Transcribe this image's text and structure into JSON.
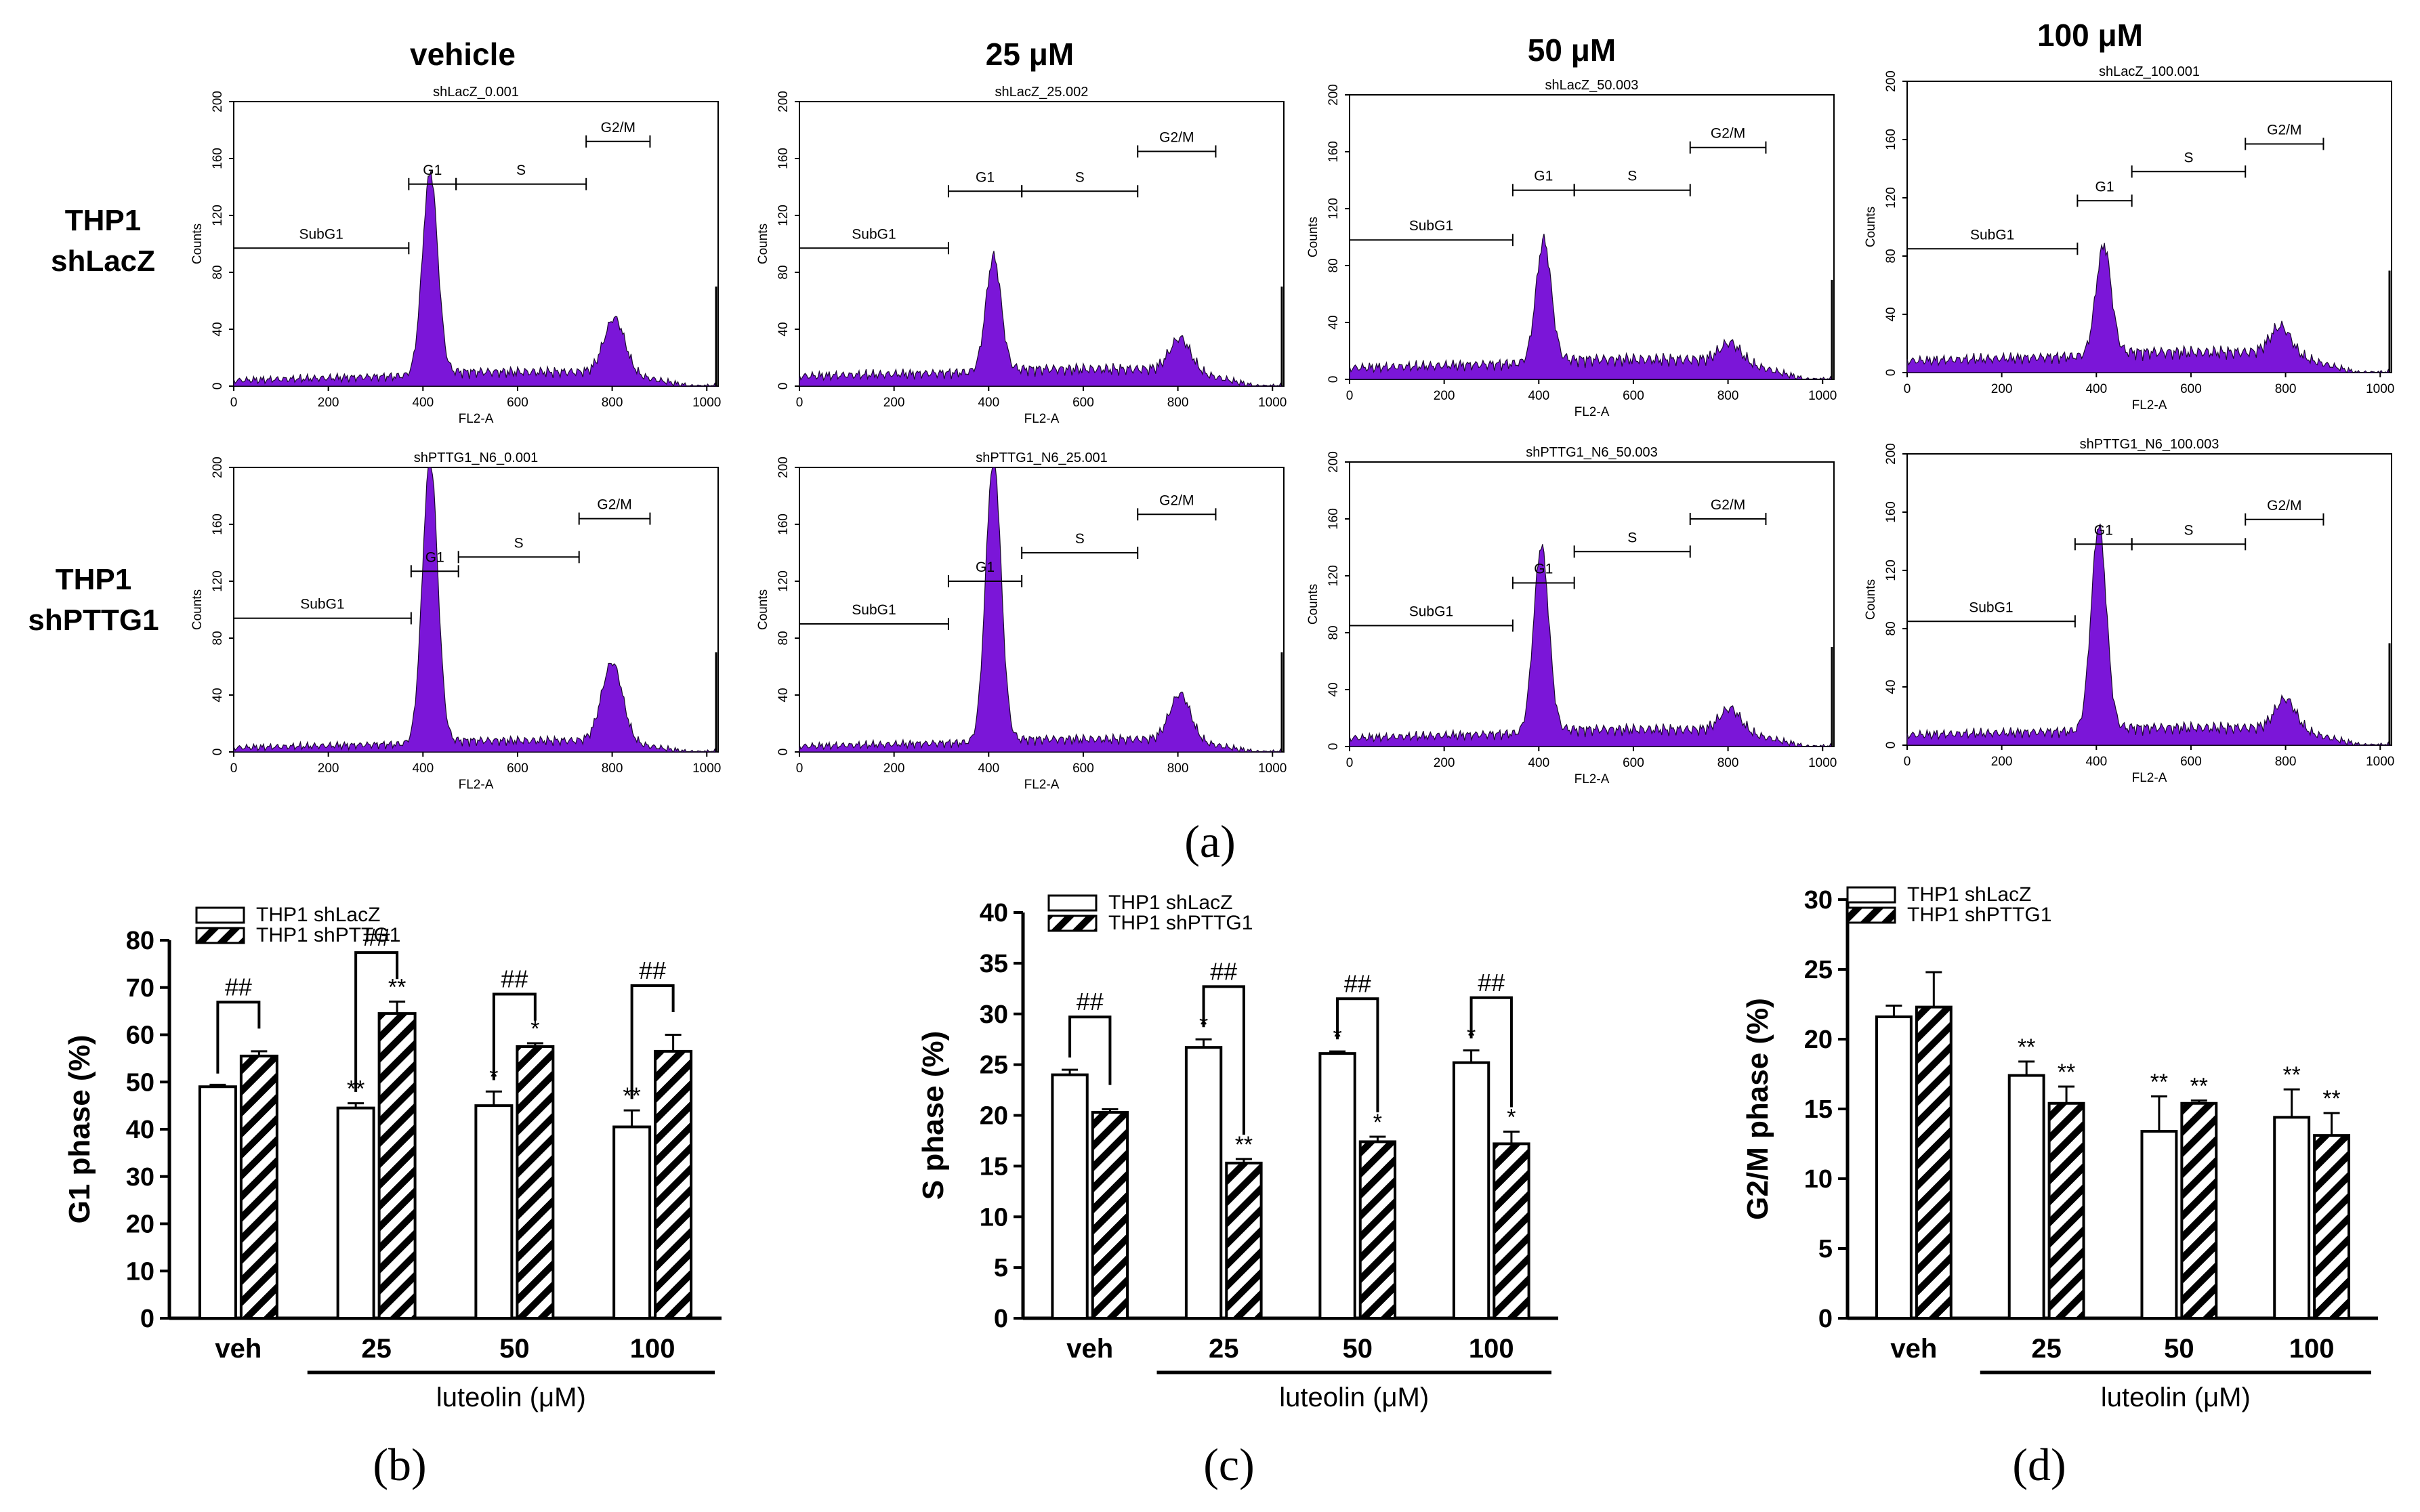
{
  "colors": {
    "histogram_fill": "#7b16d8",
    "histogram_edge": "#1a0a2e",
    "axis": "#000000",
    "bar_open": "#ffffff"
  },
  "panel_labels": {
    "a": "(a)",
    "b": "(b)",
    "c": "(c)",
    "d": "(d)"
  },
  "flow": {
    "columns": [
      "vehicle",
      "25 μM",
      "50 μM",
      "100 μM"
    ],
    "rows": [
      {
        "label_line1": "THP1",
        "label_line2": "shLacZ"
      },
      {
        "label_line1": "THP1",
        "label_line2": "shPTTG1"
      }
    ],
    "xlabel": "FL2-A",
    "ylabel": "Counts",
    "xticks": [
      "0",
      "200",
      "400",
      "600",
      "800",
      "1000"
    ],
    "yticks": [
      "0",
      "40",
      "80",
      "120",
      "160",
      "200"
    ],
    "gate_labels": [
      "SubG1",
      "G1",
      "S",
      "G2/M"
    ]
  },
  "chart_data": [
    {
      "type": "histogram",
      "panel": "a",
      "row": 0,
      "col": 0,
      "title": "shLacZ_0.001",
      "xlim": [
        0,
        1024
      ],
      "ylim": [
        0,
        200
      ],
      "peaks": {
        "g1_pos": 415,
        "g1_height": 142,
        "g2_pos": 805,
        "g2_height": 38,
        "sub_level": 4,
        "s_level": 10
      },
      "gates": {
        "subg1": [
          0,
          370
        ],
        "g1": [
          370,
          470
        ],
        "s": [
          470,
          745
        ],
        "g2m": [
          745,
          880
        ]
      },
      "gate_y": {
        "subg1": 97,
        "g1": 142,
        "s": 142,
        "g2m": 172
      }
    },
    {
      "type": "histogram",
      "panel": "a",
      "row": 0,
      "col": 1,
      "title": "shLacZ_25.002",
      "xlim": [
        0,
        1024
      ],
      "ylim": [
        0,
        200
      ],
      "peaks": {
        "g1_pos": 410,
        "g1_height": 80,
        "g2_pos": 805,
        "g2_height": 22,
        "sub_level": 7,
        "s_level": 12
      },
      "gates": {
        "subg1": [
          0,
          315
        ],
        "g1": [
          315,
          470
        ],
        "s": [
          470,
          715
        ],
        "g2m": [
          715,
          880
        ]
      },
      "gate_y": {
        "subg1": 97,
        "g1": 137,
        "s": 137,
        "g2m": 165
      }
    },
    {
      "type": "histogram",
      "panel": "a",
      "row": 0,
      "col": 2,
      "title": "shLacZ_50.003",
      "xlim": [
        0,
        1024
      ],
      "ylim": [
        0,
        200
      ],
      "peaks": {
        "g1_pos": 410,
        "g1_height": 85,
        "g2_pos": 805,
        "g2_height": 12,
        "sub_level": 8,
        "s_level": 14
      },
      "gates": {
        "subg1": [
          0,
          345
        ],
        "g1": [
          345,
          475
        ],
        "s": [
          475,
          720
        ],
        "g2m": [
          720,
          880
        ]
      },
      "gate_y": {
        "subg1": 98,
        "g1": 133,
        "s": 133,
        "g2m": 163
      }
    },
    {
      "type": "histogram",
      "panel": "a",
      "row": 0,
      "col": 3,
      "title": "shLacZ_100.001",
      "xlim": [
        0,
        1024
      ],
      "ylim": [
        0,
        200
      ],
      "peaks": {
        "g1_pos": 415,
        "g1_height": 75,
        "g2_pos": 790,
        "g2_height": 18,
        "sub_level": 8,
        "s_level": 14
      },
      "gates": {
        "subg1": [
          0,
          360
        ],
        "g1": [
          360,
          475
        ],
        "s": [
          475,
          715
        ],
        "g2m": [
          715,
          880
        ]
      },
      "gate_y": {
        "subg1": 85,
        "g1": 118,
        "s": 138,
        "g2m": 157
      }
    },
    {
      "type": "histogram",
      "panel": "a",
      "row": 1,
      "col": 0,
      "title": "shPTTG1_N6_0.001",
      "xlim": [
        0,
        1024
      ],
      "ylim": [
        0,
        200
      ],
      "peaks": {
        "g1_pos": 415,
        "g1_height": 200,
        "g2_pos": 800,
        "g2_height": 55,
        "sub_level": 3,
        "s_level": 8
      },
      "gates": {
        "subg1": [
          0,
          375
        ],
        "g1": [
          375,
          475
        ],
        "s": [
          475,
          730
        ],
        "g2m": [
          730,
          880
        ]
      },
      "gate_y": {
        "subg1": 94,
        "g1": 127,
        "s": 137,
        "g2m": 164
      }
    },
    {
      "type": "histogram",
      "panel": "a",
      "row": 1,
      "col": 1,
      "title": "shPTTG1_N6_25.001",
      "xlim": [
        0,
        1024
      ],
      "ylim": [
        0,
        200
      ],
      "peaks": {
        "g1_pos": 410,
        "g1_height": 200,
        "g2_pos": 805,
        "g2_height": 32,
        "sub_level": 4,
        "s_level": 9
      },
      "gates": {
        "subg1": [
          0,
          315
        ],
        "g1": [
          315,
          470
        ],
        "s": [
          470,
          715
        ],
        "g2m": [
          715,
          880
        ]
      },
      "gate_y": {
        "subg1": 90,
        "g1": 120,
        "s": 140,
        "g2m": 167
      }
    },
    {
      "type": "histogram",
      "panel": "a",
      "row": 1,
      "col": 2,
      "title": "shPTTG1_N6_50.003",
      "xlim": [
        0,
        1024
      ],
      "ylim": [
        0,
        200
      ],
      "peaks": {
        "g1_pos": 405,
        "g1_height": 130,
        "g2_pos": 805,
        "g2_height": 15,
        "sub_level": 6,
        "s_level": 12
      },
      "gates": {
        "subg1": [
          0,
          345
        ],
        "g1": [
          345,
          475
        ],
        "s": [
          475,
          720
        ],
        "g2m": [
          720,
          880
        ]
      },
      "gate_y": {
        "subg1": 85,
        "g1": 115,
        "s": 137,
        "g2m": 160
      }
    },
    {
      "type": "histogram",
      "panel": "a",
      "row": 1,
      "col": 3,
      "title": "shPTTG1_N6_100.003",
      "xlim": [
        0,
        1024
      ],
      "ylim": [
        0,
        200
      ],
      "peaks": {
        "g1_pos": 405,
        "g1_height": 140,
        "g2_pos": 800,
        "g2_height": 20,
        "sub_level": 7,
        "s_level": 12
      },
      "gates": {
        "subg1": [
          0,
          355
        ],
        "g1": [
          355,
          475
        ],
        "s": [
          475,
          715
        ],
        "g2m": [
          715,
          880
        ]
      },
      "gate_y": {
        "subg1": 85,
        "g1": 138,
        "s": 138,
        "g2m": 155
      }
    },
    {
      "type": "bar",
      "panel": "b",
      "categories": [
        "veh",
        "25",
        "50",
        "100"
      ],
      "series": [
        {
          "name": "THP1 shLacZ",
          "pattern": "open",
          "values": [
            49,
            44.5,
            45,
            40.5
          ],
          "errors": [
            0.4,
            1,
            3,
            3.5
          ]
        },
        {
          "name": "THP1 shPTTG1",
          "pattern": "hatched",
          "values": [
            55.5,
            64.5,
            57.5,
            56.5
          ],
          "errors": [
            1,
            2.5,
            0.7,
            3.5
          ]
        }
      ],
      "ylabel": "G1 phase (%)",
      "xlabel": "luteolin (μM)",
      "ylim": [
        0,
        80
      ],
      "yticks": [
        "0",
        "10",
        "20",
        "30",
        "40",
        "50",
        "60",
        "70",
        "80"
      ],
      "stars": [
        [
          "",
          "**",
          "*",
          "**"
        ],
        [
          "",
          "**",
          "*",
          ""
        ]
      ],
      "hash": [
        "##",
        "##",
        "##",
        "##"
      ],
      "legend_position": "top-left"
    },
    {
      "type": "bar",
      "panel": "c",
      "categories": [
        "veh",
        "25",
        "50",
        "100"
      ],
      "series": [
        {
          "name": "THP1 shLacZ",
          "pattern": "open",
          "values": [
            24,
            26.7,
            26.1,
            25.2
          ],
          "errors": [
            0.5,
            0.8,
            0.2,
            1.2
          ]
        },
        {
          "name": "THP1 shPTTG1",
          "pattern": "hatched",
          "values": [
            20.3,
            15.3,
            17.4,
            17.2
          ],
          "errors": [
            0.3,
            0.4,
            0.5,
            1.2
          ]
        }
      ],
      "ylabel": "S phase (%)",
      "xlabel": "luteolin (μM)",
      "ylim": [
        0,
        40
      ],
      "yticks": [
        "0",
        "5",
        "10",
        "15",
        "20",
        "25",
        "30",
        "35",
        "40"
      ],
      "stars": [
        [
          "",
          "*",
          "*",
          "*"
        ],
        [
          "",
          "**",
          "*",
          "*"
        ]
      ],
      "hash": [
        "##",
        "##",
        "##",
        "##"
      ],
      "legend_position": "top-left"
    },
    {
      "type": "bar",
      "panel": "d",
      "categories": [
        "veh",
        "25",
        "50",
        "100"
      ],
      "series": [
        {
          "name": "THP1 shLacZ",
          "pattern": "open",
          "values": [
            21.6,
            17.4,
            13.4,
            14.4
          ],
          "errors": [
            0.8,
            1,
            2.5,
            2
          ]
        },
        {
          "name": "THP1 shPTTG1",
          "pattern": "hatched",
          "values": [
            22.3,
            15.4,
            15.4,
            13.1
          ],
          "errors": [
            2.5,
            1.2,
            0.2,
            1.6
          ]
        }
      ],
      "ylabel": "G2/M phase (%)",
      "xlabel": "luteolin (μM)",
      "ylim": [
        0,
        30
      ],
      "yticks": [
        "0",
        "5",
        "10",
        "15",
        "20",
        "25",
        "30"
      ],
      "stars": [
        [
          "",
          "**",
          "**",
          "**"
        ],
        [
          "",
          "**",
          "**",
          "**"
        ]
      ],
      "hash": [
        "",
        "",
        "",
        ""
      ],
      "legend_position": "top-left"
    }
  ]
}
